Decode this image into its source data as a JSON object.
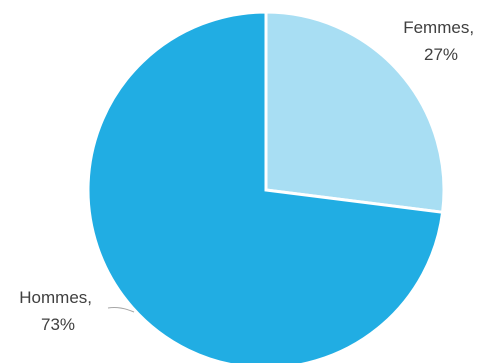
{
  "chart_data": {
    "type": "pie",
    "title": "",
    "slices": [
      {
        "label_name": "Femmes,",
        "label_value": "27%",
        "value": 27,
        "color": "#a8def3"
      },
      {
        "label_name": "Hommes,",
        "label_value": "73%",
        "value": 73,
        "color": "#21ade3"
      }
    ],
    "start_angle_deg": 0,
    "direction": "clockwise",
    "slice_border_color": "#ffffff",
    "leader_line_color": "#a6a6a6",
    "data_labels": "outside"
  }
}
